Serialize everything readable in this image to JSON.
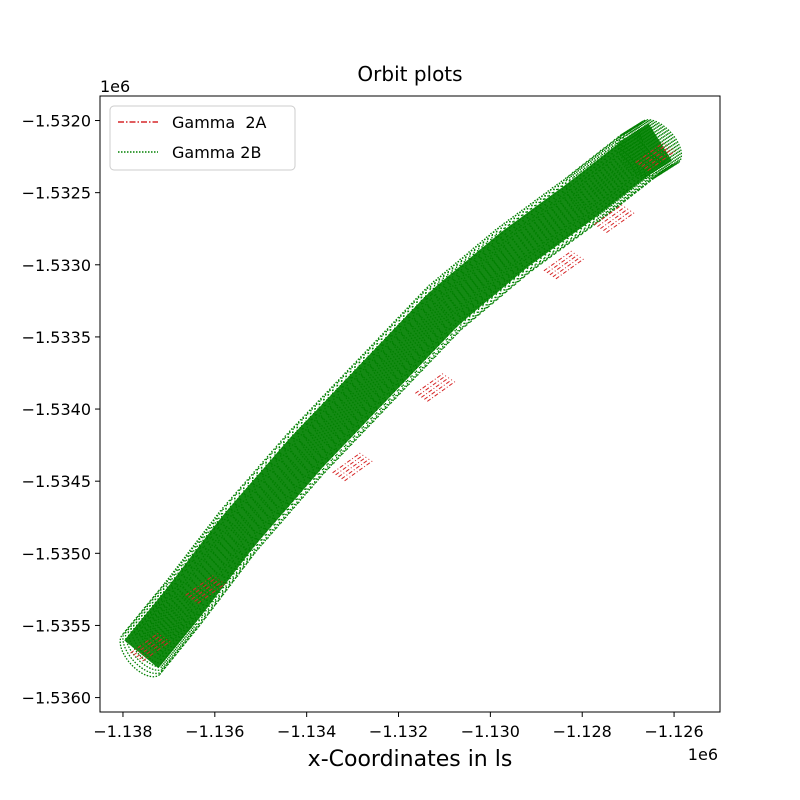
{
  "chart_data": {
    "type": "line",
    "title": "Orbit plots",
    "xlabel": "x-Coordinates in ls",
    "ylabel": "",
    "x_offset_label": "1e6",
    "y_offset_label": "1e6",
    "xlim": [
      -1.1385,
      -1.125
    ],
    "ylim": [
      -1.5361,
      -1.53183
    ],
    "x_ticks": [
      -1.138,
      -1.136,
      -1.134,
      -1.132,
      -1.13,
      -1.128,
      -1.126
    ],
    "x_tick_labels": [
      "−1.138",
      "−1.136",
      "−1.134",
      "−1.132",
      "−1.130",
      "−1.128",
      "−1.126"
    ],
    "y_ticks": [
      -1.532,
      -1.5325,
      -1.533,
      -1.5335,
      -1.534,
      -1.5345,
      -1.535,
      -1.5355,
      -1.536
    ],
    "y_tick_labels": [
      "−1.5320",
      "−1.5325",
      "−1.5330",
      "−1.5335",
      "−1.5340",
      "−1.5345",
      "−1.5350",
      "−1.5355",
      "−1.5360"
    ],
    "grid": false,
    "legend_position": "top-left",
    "series": [
      {
        "name": "Gamma  2A",
        "color": "#d62728",
        "linestyle": "dash-dot",
        "centerline": {
          "x": [
            -1.1374,
            -1.1362,
            -1.133,
            -1.1312,
            -1.1284,
            -1.1273,
            -1.1264
          ],
          "y": [
            -1.53565,
            -1.53525,
            -1.5344,
            -1.53385,
            -1.533,
            -1.53268,
            -1.53225
          ]
        }
      },
      {
        "name": "Gamma 2B",
        "color": "#008000",
        "linestyle": "dotted",
        "centerline": {
          "x": [
            -1.1376,
            -1.1367,
            -1.1355,
            -1.134,
            -1.1325,
            -1.131,
            -1.1295,
            -1.128,
            -1.1268,
            -1.1263
          ],
          "y": [
            -1.5357,
            -1.53535,
            -1.53485,
            -1.5343,
            -1.5338,
            -1.5333,
            -1.5329,
            -1.53255,
            -1.53225,
            -1.53215
          ]
        },
        "band_halfwidth": 0.0001
      }
    ]
  }
}
